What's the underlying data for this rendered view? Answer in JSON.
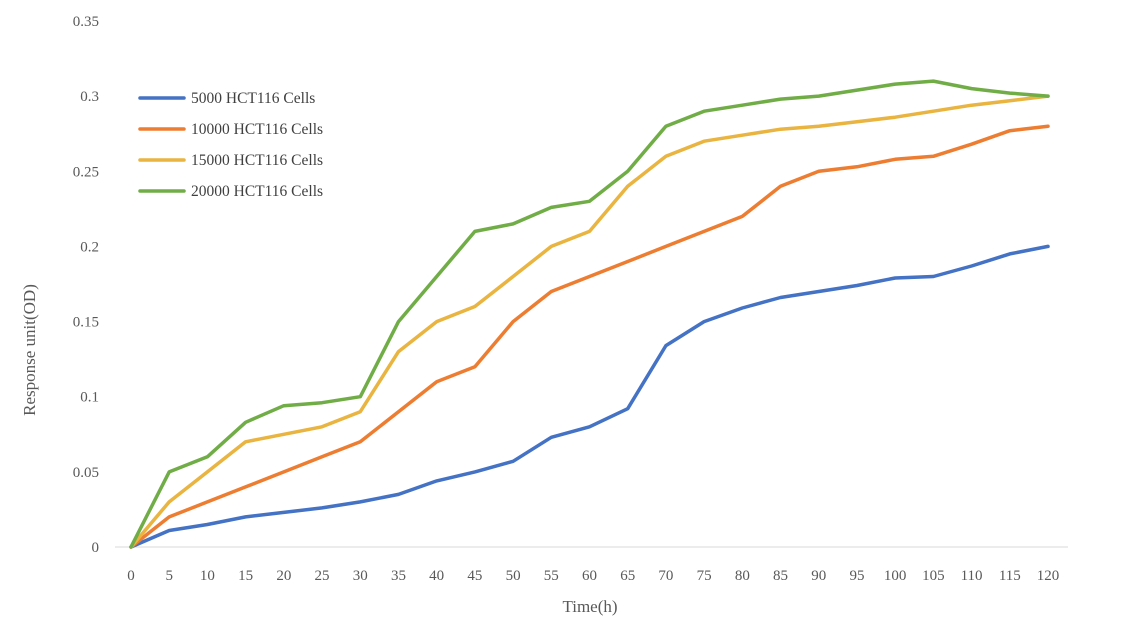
{
  "chart_data": {
    "type": "line",
    "xlabel": "Time(h)",
    "ylabel": "Response unit(OD)",
    "x": [
      0,
      5,
      10,
      15,
      20,
      25,
      30,
      35,
      40,
      45,
      50,
      55,
      60,
      65,
      70,
      75,
      80,
      85,
      90,
      95,
      100,
      105,
      110,
      115,
      120
    ],
    "ylim": [
      0,
      0.35
    ],
    "yticks": [
      "0",
      "0.05",
      "0.1",
      "0.15",
      "0.2",
      "0.25",
      "0.3",
      "0.35"
    ],
    "grid": false,
    "legend_position": "top-left",
    "series": [
      {
        "name": "5000 HCT116 Cells",
        "color": "#4472C4",
        "values": [
          0,
          0.011,
          0.015,
          0.02,
          0.023,
          0.026,
          0.03,
          0.035,
          0.044,
          0.05,
          0.057,
          0.073,
          0.08,
          0.092,
          0.134,
          0.15,
          0.159,
          0.166,
          0.17,
          0.174,
          0.179,
          0.18,
          0.187,
          0.195,
          0.2
        ]
      },
      {
        "name": "10000 HCT116 Cells",
        "color": "#ED7D31",
        "values": [
          0,
          0.02,
          0.03,
          0.04,
          0.05,
          0.06,
          0.07,
          0.09,
          0.11,
          0.12,
          0.15,
          0.17,
          0.18,
          0.19,
          0.2,
          0.21,
          0.22,
          0.24,
          0.25,
          0.253,
          0.258,
          0.26,
          0.268,
          0.277,
          0.28
        ]
      },
      {
        "name": "15000 HCT116 Cells",
        "color": "#E9B440",
        "values": [
          0,
          0.03,
          0.05,
          0.07,
          0.075,
          0.08,
          0.09,
          0.13,
          0.15,
          0.16,
          0.18,
          0.2,
          0.21,
          0.24,
          0.26,
          0.27,
          0.274,
          0.278,
          0.28,
          0.283,
          0.286,
          0.29,
          0.294,
          0.297,
          0.3
        ]
      },
      {
        "name": "20000 HCT116 Cells",
        "color": "#70AD47",
        "values": [
          0,
          0.05,
          0.06,
          0.083,
          0.094,
          0.096,
          0.1,
          0.15,
          0.18,
          0.21,
          0.215,
          0.226,
          0.23,
          0.25,
          0.28,
          0.29,
          0.294,
          0.298,
          0.3,
          0.304,
          0.308,
          0.31,
          0.305,
          0.302,
          0.3
        ]
      }
    ]
  }
}
